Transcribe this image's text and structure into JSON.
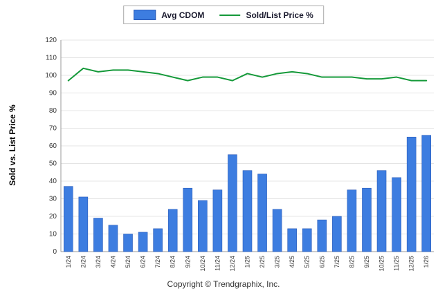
{
  "chart_data": {
    "type": "bar+line",
    "categories": [
      "1/24",
      "2/24",
      "3/24",
      "4/24",
      "5/24",
      "6/24",
      "7/24",
      "8/24",
      "9/24",
      "10/24",
      "11/24",
      "12/24",
      "1/25",
      "2/25",
      "3/25",
      "4/25",
      "5/25",
      "6/25",
      "7/25",
      "8/25",
      "9/25",
      "10/25",
      "11/25",
      "12/25",
      "1/26"
    ],
    "series": [
      {
        "name": "Avg CDOM",
        "type": "bar",
        "color": "#3d7de0",
        "border_color": "#2a5bb8",
        "values": [
          37,
          31,
          19,
          15,
          10,
          11,
          13,
          24,
          36,
          29,
          35,
          55,
          46,
          44,
          24,
          13,
          13,
          18,
          20,
          35,
          36,
          46,
          42,
          65,
          66
        ]
      },
      {
        "name": "Sold/List Price %",
        "type": "line",
        "color": "#149939",
        "values": [
          97,
          104,
          102,
          103,
          103,
          102,
          101,
          99,
          97,
          99,
          99,
          97,
          101,
          99,
          101,
          102,
          101,
          99,
          99,
          99,
          98,
          98,
          99,
          97,
          97
        ]
      }
    ],
    "title": "",
    "xlabel": "",
    "ylabel": "Sold vs. List Price %",
    "ylim": [
      0,
      120
    ],
    "ytick_step": 10,
    "grid": true,
    "legend_position": "top-center"
  },
  "footer": {
    "copyright": "Copyright © Trendgraphix, Inc."
  }
}
